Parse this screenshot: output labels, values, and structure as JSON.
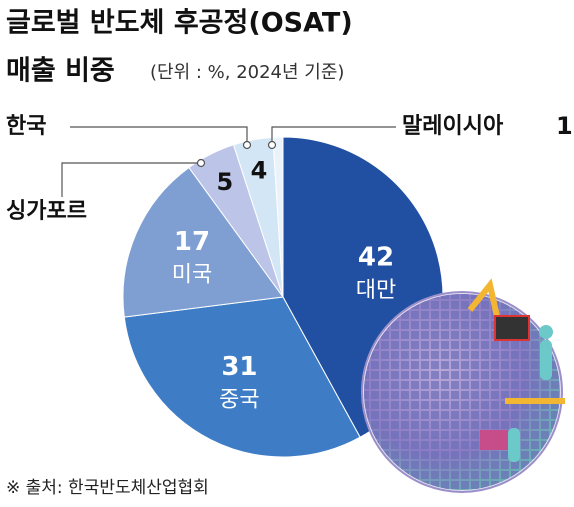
{
  "chart_data": {
    "type": "pie",
    "title": "글로벌 반도체 후공정(OSAT)",
    "subtitle_main": "매출 비중",
    "subtitle": "(단위 : %, 2024년 기준)",
    "categories": [
      "대만",
      "중국",
      "미국",
      "싱가포르",
      "한국",
      "말레이시아"
    ],
    "values": [
      42,
      31,
      17,
      5,
      4,
      1
    ],
    "colors": [
      "#2150a3",
      "#3e7dc6",
      "#7f9fd3",
      "#bcc4e8",
      "#d3e6f6",
      "#eaf3fc"
    ],
    "source": "※ 출처: 한국반도체산업협회"
  }
}
